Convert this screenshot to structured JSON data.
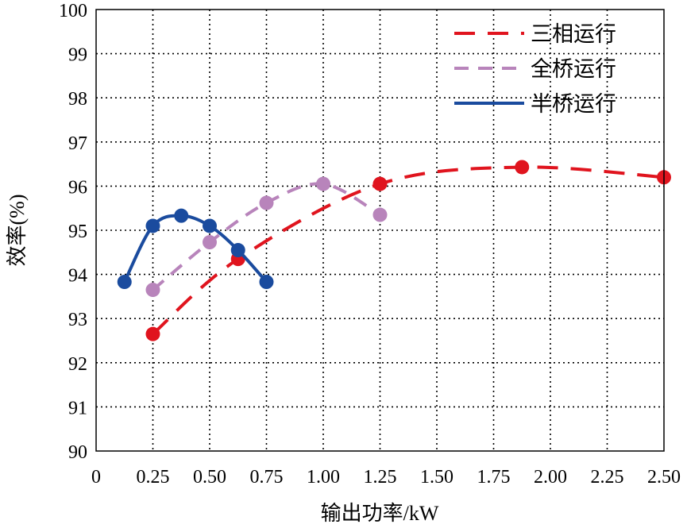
{
  "chart_data": {
    "type": "line",
    "xlabel": "输出功率/kW",
    "ylabel": "效率(%)",
    "xlim": [
      0,
      2.5
    ],
    "ylim": [
      90,
      100
    ],
    "xticks": [
      "0",
      "0.25",
      "0.50",
      "0.75",
      "1.00",
      "1.25",
      "1.50",
      "1.75",
      "2.00",
      "2.25",
      "2.50"
    ],
    "yticks": [
      "90",
      "91",
      "92",
      "93",
      "94",
      "95",
      "96",
      "97",
      "98",
      "99",
      "100"
    ],
    "grid": true,
    "legend_position": "top-right",
    "series": [
      {
        "name": "三相运行",
        "color": "#e0141e",
        "style": "long-dash",
        "x": [
          0.25,
          0.625,
          1.25,
          1.875,
          2.5
        ],
        "y": [
          92.65,
          94.35,
          96.05,
          96.43,
          96.2
        ]
      },
      {
        "name": "全桥运行",
        "color": "#b884bb",
        "style": "dash",
        "x": [
          0.25,
          0.5,
          0.75,
          1.0,
          1.25
        ],
        "y": [
          93.65,
          94.73,
          95.62,
          96.05,
          95.35
        ]
      },
      {
        "name": "半桥运行",
        "color": "#1a4b9e",
        "style": "solid",
        "x": [
          0.125,
          0.25,
          0.375,
          0.5,
          0.625,
          0.75
        ],
        "y": [
          93.83,
          95.1,
          95.33,
          95.1,
          94.55,
          93.83
        ]
      }
    ]
  }
}
